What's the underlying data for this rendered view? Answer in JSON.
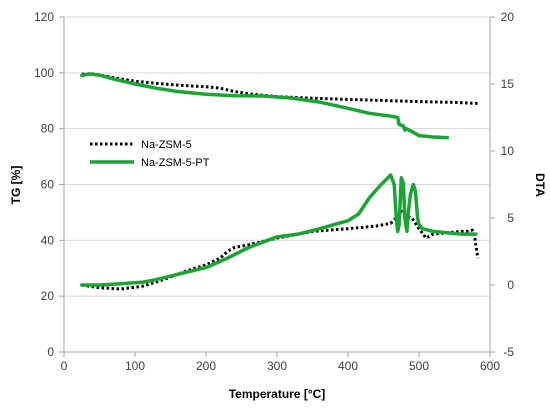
{
  "chart_data": {
    "type": "line",
    "xlabel": "Temperature [°C]",
    "ylabel": "TG [%]",
    "y2label": "DTA",
    "xlim": [
      0,
      600
    ],
    "ylim": [
      0,
      120
    ],
    "y2lim": [
      -5,
      20
    ],
    "xticks": [
      0,
      100,
      200,
      300,
      400,
      500,
      600
    ],
    "yticks": [
      0,
      20,
      40,
      60,
      80,
      100,
      120
    ],
    "y2ticks": [
      -5,
      0,
      5,
      10,
      15,
      20
    ],
    "grid": "horizontal",
    "legend_position": "middle-left",
    "colors": {
      "series1": "#000000",
      "series2": "#1aa535",
      "grid": "#d9d9d9",
      "axis": "#a6a6a6"
    },
    "series": [
      {
        "name": "Na-ZSM-5",
        "style": "dotted",
        "axis": "left",
        "x": [
          25,
          40,
          60,
          80,
          100,
          120,
          140,
          160,
          180,
          200,
          220,
          240,
          260,
          300,
          350,
          400,
          450,
          500,
          550,
          585
        ],
        "y": [
          99.5,
          99.6,
          98.8,
          97.8,
          97.0,
          96.5,
          96.0,
          95.6,
          95.3,
          95.0,
          94.5,
          93.3,
          92.5,
          91.5,
          90.9,
          90.5,
          90.1,
          89.7,
          89.4,
          89.0
        ]
      },
      {
        "name": "Na-ZSM-5-PT",
        "style": "solid",
        "axis": "left",
        "x": [
          25,
          35,
          50,
          70,
          100,
          130,
          160,
          200,
          240,
          280,
          320,
          360,
          400,
          430,
          460,
          470,
          472,
          478,
          480,
          482,
          490,
          500,
          520,
          540
        ],
        "y": [
          99.0,
          99.6,
          99.2,
          97.8,
          96.0,
          94.5,
          93.3,
          92.3,
          91.8,
          91.7,
          91.0,
          89.5,
          87.3,
          85.5,
          84.5,
          84.0,
          81.5,
          81.0,
          79.5,
          80.0,
          79.0,
          77.5,
          77.0,
          76.8
        ]
      },
      {
        "name": "Na-ZSM-5",
        "style": "dotted",
        "axis": "right",
        "x": [
          25,
          50,
          80,
          110,
          140,
          170,
          200,
          220,
          230,
          240,
          260,
          300,
          350,
          400,
          440,
          460,
          470,
          475,
          480,
          490,
          500,
          510,
          520,
          540,
          560,
          570,
          575,
          578,
          580,
          583
        ],
        "y": [
          0,
          -0.2,
          -0.3,
          -0.1,
          0.4,
          1.0,
          1.5,
          2.0,
          2.5,
          2.8,
          3.0,
          3.5,
          4.0,
          4.2,
          4.4,
          4.6,
          5.1,
          5.5,
          5.2,
          5.0,
          4.2,
          3.5,
          3.8,
          3.9,
          4.0,
          4.0,
          4.1,
          3.8,
          3.0,
          2.0
        ]
      },
      {
        "name": "Na-ZSM-5-PT",
        "style": "solid",
        "axis": "right",
        "x": [
          25,
          50,
          80,
          110,
          130,
          160,
          200,
          230,
          260,
          300,
          330,
          360,
          380,
          400,
          415,
          430,
          445,
          460,
          465,
          468,
          470,
          472,
          475,
          478,
          480,
          483,
          485,
          488,
          492,
          495,
          498,
          500,
          505,
          520,
          540,
          560,
          575,
          580
        ],
        "y": [
          0,
          0,
          0.1,
          0.2,
          0.4,
          0.8,
          1.3,
          2.0,
          2.8,
          3.6,
          3.8,
          4.2,
          4.5,
          4.8,
          5.3,
          6.5,
          7.4,
          8.2,
          7.5,
          5.0,
          4.0,
          4.5,
          8.0,
          7.6,
          5.0,
          4.0,
          5.5,
          6.8,
          7.5,
          7.0,
          5.0,
          4.5,
          4.2,
          4.0,
          3.9,
          3.8,
          3.8,
          3.8
        ]
      }
    ]
  }
}
